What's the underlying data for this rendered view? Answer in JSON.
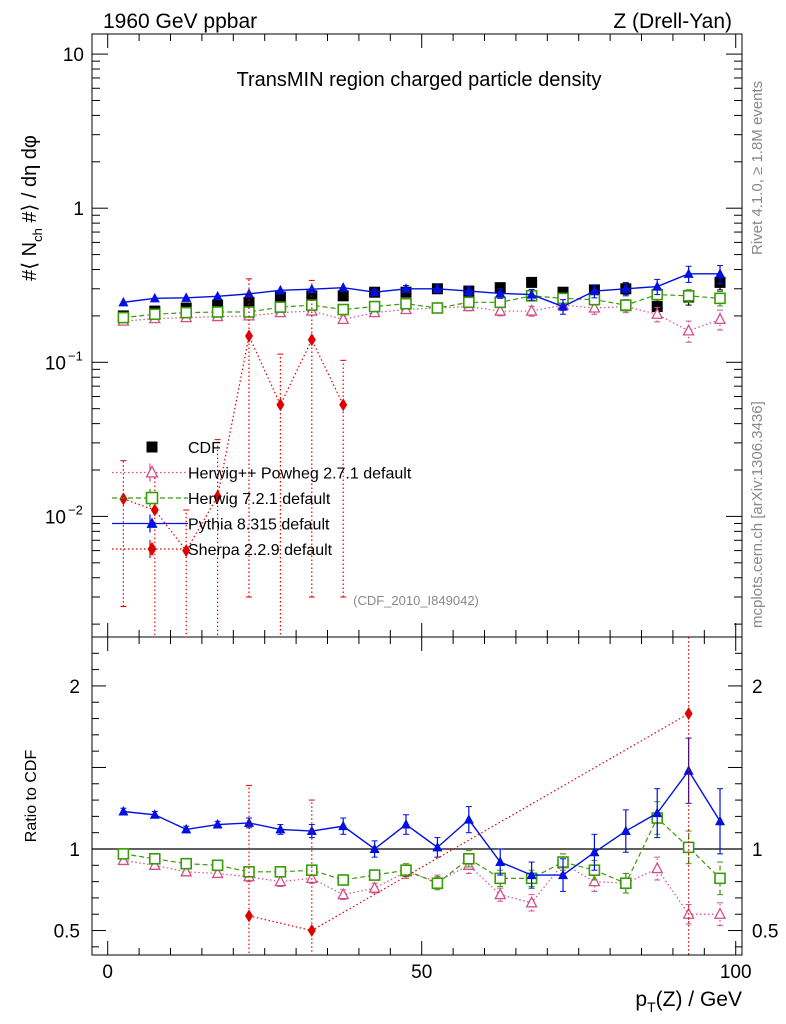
{
  "header": {
    "left_label": "1960 GeV ppbar",
    "right_label": "Z (Drell-Yan)"
  },
  "side_labels": {
    "rivet": "Rivet 4.1.0, ≥ 1.8M events",
    "mcplots": "mcplots.cern.ch [arXiv:1306.3436]"
  },
  "colors": {
    "cdf": "#000000",
    "herwigpp": "#d0508a",
    "herwig7": "#3a9a0a",
    "pythia": "#0010e0",
    "sherpa": "#e00000"
  },
  "chart_data": [
    {
      "type": "scatter",
      "panel": "main",
      "title": "TransMIN region charged particle density",
      "watermark": "(CDF_2010_I849042)",
      "xlabel": "p_T(Z) / GeV",
      "ylabel": "#⟨ N_ch #⟩ / dη dφ",
      "yscale": "log",
      "xlim": [
        -2.5,
        101
      ],
      "ylim": [
        0.00165,
        13.5
      ],
      "yticks": [
        {
          "value": 10,
          "label": "10"
        },
        {
          "value": 1,
          "label": "1"
        },
        {
          "value": 0.1,
          "label": "10",
          "exp": "−1"
        },
        {
          "value": 0.01,
          "label": "10",
          "exp": "−2"
        }
      ],
      "x": [
        2.5,
        7.5,
        12.5,
        17.5,
        22.5,
        27.5,
        32.5,
        37.5,
        42.5,
        47.5,
        52.5,
        57.5,
        62.5,
        67.5,
        72.5,
        77.5,
        82.5,
        87.5,
        92.5,
        97.5
      ],
      "series": [
        {
          "name": "CDF",
          "key": "cdf",
          "marker": "square",
          "values": [
            0.2,
            0.215,
            0.225,
            0.235,
            0.245,
            0.265,
            0.27,
            0.27,
            0.285,
            0.285,
            0.3,
            0.29,
            0.305,
            0.33,
            0.285,
            0.295,
            0.3,
            0.23,
            0.265,
            0.33
          ],
          "errors": [
            0.005,
            0.005,
            0.005,
            0.006,
            0.008,
            0.01,
            0.012,
            0.013,
            0.014,
            0.015,
            0.016,
            0.017,
            0.018,
            0.02,
            0.02,
            0.022,
            0.024,
            0.028,
            0.03,
            0.035
          ]
        },
        {
          "name": "Herwig++ Powheg 2.7.1 default",
          "key": "herwigpp",
          "marker": "triangle-open",
          "values": [
            0.185,
            0.192,
            0.195,
            0.198,
            0.2,
            0.21,
            0.215,
            0.19,
            0.21,
            0.22,
            0.225,
            0.23,
            0.215,
            0.215,
            0.235,
            0.225,
            0.23,
            0.205,
            0.16,
            0.19
          ],
          "errors": [
            0.003,
            0.004,
            0.004,
            0.005,
            0.006,
            0.007,
            0.008,
            0.009,
            0.01,
            0.011,
            0.012,
            0.014,
            0.015,
            0.016,
            0.018,
            0.02,
            0.02,
            0.022,
            0.025,
            0.028
          ]
        },
        {
          "name": "Herwig 7.2.1 default",
          "key": "herwig7",
          "marker": "square-open",
          "values": [
            0.195,
            0.205,
            0.21,
            0.212,
            0.212,
            0.228,
            0.235,
            0.22,
            0.23,
            0.24,
            0.225,
            0.245,
            0.245,
            0.27,
            0.26,
            0.255,
            0.235,
            0.275,
            0.27,
            0.26
          ],
          "errors": [
            0.003,
            0.004,
            0.004,
            0.005,
            0.006,
            0.007,
            0.008,
            0.009,
            0.01,
            0.011,
            0.012,
            0.013,
            0.014,
            0.015,
            0.016,
            0.018,
            0.02,
            0.022,
            0.025,
            0.028
          ]
        },
        {
          "name": "Pythia 8.315 default",
          "key": "pythia",
          "marker": "triangle",
          "values": [
            0.245,
            0.26,
            0.262,
            0.268,
            0.278,
            0.293,
            0.298,
            0.305,
            0.285,
            0.3,
            0.3,
            0.29,
            0.28,
            0.275,
            0.23,
            0.29,
            0.3,
            0.31,
            0.375,
            0.375
          ],
          "errors": [
            0.004,
            0.005,
            0.005,
            0.006,
            0.007,
            0.008,
            0.009,
            0.011,
            0.013,
            0.015,
            0.017,
            0.019,
            0.02,
            0.022,
            0.025,
            0.028,
            0.03,
            0.035,
            0.045,
            0.05
          ]
        },
        {
          "name": "Sherpa 2.2.9 default",
          "key": "sherpa",
          "marker": "diamond",
          "values": [
            0.013,
            0.011,
            0.006,
            0.0135,
            0.148,
            0.053,
            0.14,
            0.053,
            null,
            null,
            null,
            null,
            null,
            null,
            null,
            null,
            null,
            null,
            null,
            null
          ],
          "err_lo": [
            0.0104,
            0.0107,
            0.0058,
            0.0132,
            0.145,
            0.052,
            0.137,
            0.05,
            null,
            null,
            null,
            null,
            null,
            null,
            null,
            null,
            null,
            null,
            null,
            null
          ],
          "err_hi": [
            0.01,
            0.007,
            0.005,
            0.018,
            0.2,
            0.06,
            0.2,
            0.05,
            null,
            null,
            null,
            null,
            null,
            null,
            null,
            null,
            null,
            null,
            null,
            null
          ]
        }
      ]
    },
    {
      "type": "scatter",
      "panel": "ratio",
      "ylabel": "Ratio to CDF",
      "xlabel": "p_T(Z) / GeV",
      "xlim": [
        -2.5,
        101
      ],
      "ylim": [
        0.35,
        2.3
      ],
      "reference_line": 1,
      "yticks": [
        {
          "value": 2,
          "label": "2"
        },
        {
          "value": 1,
          "label": "1"
        },
        {
          "value": 0.5,
          "label": "0.5"
        }
      ],
      "xticks": [
        {
          "value": 0,
          "label": "0"
        },
        {
          "value": 50,
          "label": "50"
        },
        {
          "value": 100,
          "label": "100"
        }
      ],
      "x": [
        2.5,
        7.5,
        12.5,
        17.5,
        22.5,
        27.5,
        32.5,
        37.5,
        42.5,
        47.5,
        52.5,
        57.5,
        62.5,
        67.5,
        72.5,
        77.5,
        82.5,
        87.5,
        92.5,
        97.5
      ],
      "series": [
        {
          "name": "Herwig++ Powheg 2.7.1 default",
          "key": "herwigpp",
          "marker": "triangle-open",
          "values": [
            0.93,
            0.9,
            0.86,
            0.85,
            0.83,
            0.8,
            0.82,
            0.72,
            0.76,
            0.86,
            0.8,
            0.9,
            0.72,
            0.67,
            0.91,
            0.8,
            0.79,
            0.88,
            0.6,
            0.6
          ],
          "errors": [
            0.02,
            0.02,
            0.02,
            0.02,
            0.03,
            0.03,
            0.03,
            0.03,
            0.03,
            0.04,
            0.04,
            0.05,
            0.04,
            0.05,
            0.06,
            0.06,
            0.06,
            0.07,
            0.06,
            0.07
          ]
        },
        {
          "name": "Herwig 7.2.1 default",
          "key": "herwig7",
          "marker": "square-open",
          "values": [
            0.97,
            0.94,
            0.91,
            0.9,
            0.86,
            0.86,
            0.87,
            0.81,
            0.84,
            0.87,
            0.79,
            0.94,
            0.82,
            0.82,
            0.92,
            0.87,
            0.79,
            1.19,
            1.01,
            0.82
          ],
          "errors": [
            0.02,
            0.02,
            0.02,
            0.02,
            0.03,
            0.03,
            0.03,
            0.03,
            0.03,
            0.04,
            0.04,
            0.05,
            0.05,
            0.05,
            0.05,
            0.06,
            0.06,
            0.1,
            0.1,
            0.1
          ]
        },
        {
          "name": "Pythia 8.315 default",
          "key": "pythia",
          "marker": "triangle",
          "values": [
            1.23,
            1.21,
            1.12,
            1.15,
            1.16,
            1.12,
            1.11,
            1.14,
            1.0,
            1.15,
            1.01,
            1.18,
            0.92,
            0.84,
            0.84,
            0.98,
            1.11,
            1.22,
            1.48,
            1.17
          ],
          "errors": [
            0.02,
            0.02,
            0.02,
            0.02,
            0.03,
            0.03,
            0.04,
            0.05,
            0.05,
            0.06,
            0.06,
            0.08,
            0.08,
            0.08,
            0.1,
            0.11,
            0.13,
            0.15,
            0.2,
            0.2
          ]
        },
        {
          "name": "Sherpa 2.2.9 default",
          "key": "sherpa",
          "marker": "diamond",
          "values": [
            null,
            null,
            null,
            null,
            0.59,
            null,
            0.5,
            null,
            null,
            null,
            null,
            null,
            null,
            null,
            null,
            null,
            null,
            null,
            1.83,
            null
          ],
          "err_lo": [
            null,
            null,
            null,
            null,
            0.4,
            null,
            0.4,
            null,
            null,
            null,
            null,
            null,
            null,
            null,
            null,
            null,
            null,
            null,
            1.6,
            null
          ],
          "err_hi": [
            null,
            null,
            null,
            null,
            0.8,
            null,
            0.8,
            null,
            null,
            null,
            null,
            null,
            null,
            null,
            null,
            null,
            null,
            null,
            0.8,
            null
          ]
        }
      ]
    }
  ]
}
